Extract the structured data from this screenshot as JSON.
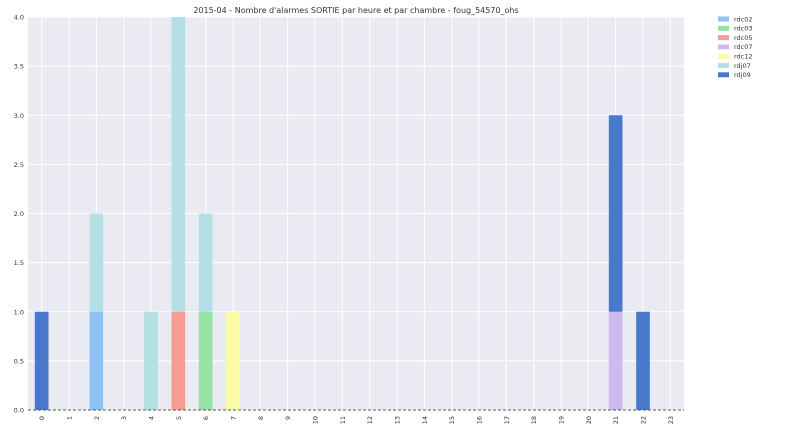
{
  "chart_data": {
    "type": "bar",
    "stacked": true,
    "title": "2015-04 - Nombre d'alarmes SORTIE par heure et par chambre - foug_54570_ohs",
    "xlabel": "",
    "ylabel": "",
    "ylim": [
      0,
      4
    ],
    "yticks": [
      "0.0",
      "0.5",
      "1.0",
      "1.5",
      "2.0",
      "2.5",
      "3.0",
      "3.5",
      "4.0"
    ],
    "categories": [
      "0",
      "1",
      "2",
      "3",
      "4",
      "5",
      "6",
      "7",
      "8",
      "9",
      "10",
      "11",
      "12",
      "13",
      "14",
      "15",
      "16",
      "17",
      "18",
      "19",
      "20",
      "21",
      "22",
      "23"
    ],
    "grid": true,
    "legend_position": "outside-right",
    "series": [
      {
        "name": "rdc02",
        "color": "#8ec1f4",
        "values": [
          0,
          0,
          1,
          0,
          0,
          0,
          0,
          0,
          0,
          0,
          0,
          0,
          0,
          0,
          0,
          0,
          0,
          0,
          0,
          0,
          0,
          0,
          0,
          0
        ]
      },
      {
        "name": "rdc03",
        "color": "#97e3a3",
        "values": [
          0,
          0,
          0,
          0,
          0,
          0,
          1,
          0,
          0,
          0,
          0,
          0,
          0,
          0,
          0,
          0,
          0,
          0,
          0,
          0,
          0,
          0,
          0,
          0
        ]
      },
      {
        "name": "rdc05",
        "color": "#f59c93",
        "values": [
          0,
          0,
          0,
          0,
          0,
          1,
          0,
          0,
          0,
          0,
          0,
          0,
          0,
          0,
          0,
          0,
          0,
          0,
          0,
          0,
          0,
          0,
          0,
          0
        ]
      },
      {
        "name": "rdc07",
        "color": "#cfb9f0",
        "values": [
          0,
          0,
          0,
          0,
          0,
          0,
          0,
          0,
          0,
          0,
          0,
          0,
          0,
          0,
          0,
          0,
          0,
          0,
          0,
          0,
          0,
          1,
          0,
          0
        ]
      },
      {
        "name": "rdc12",
        "color": "#fbfba3",
        "values": [
          0,
          0,
          0,
          0,
          0,
          0,
          0,
          1,
          0,
          0,
          0,
          0,
          0,
          0,
          0,
          0,
          0,
          0,
          0,
          0,
          0,
          0,
          0,
          0
        ]
      },
      {
        "name": "rdj07",
        "color": "#b4dfe4",
        "values": [
          0,
          0,
          1,
          0,
          1,
          3,
          1,
          0,
          0,
          0,
          0,
          0,
          0,
          0,
          0,
          0,
          0,
          0,
          0,
          0,
          0,
          0,
          0,
          0
        ]
      },
      {
        "name": "rdj09",
        "color": "#4a78cc",
        "values": [
          1,
          0,
          0,
          0,
          0,
          0,
          0,
          0,
          0,
          0,
          0,
          0,
          0,
          0,
          0,
          0,
          0,
          0,
          0,
          0,
          0,
          2,
          1,
          0
        ]
      }
    ]
  }
}
